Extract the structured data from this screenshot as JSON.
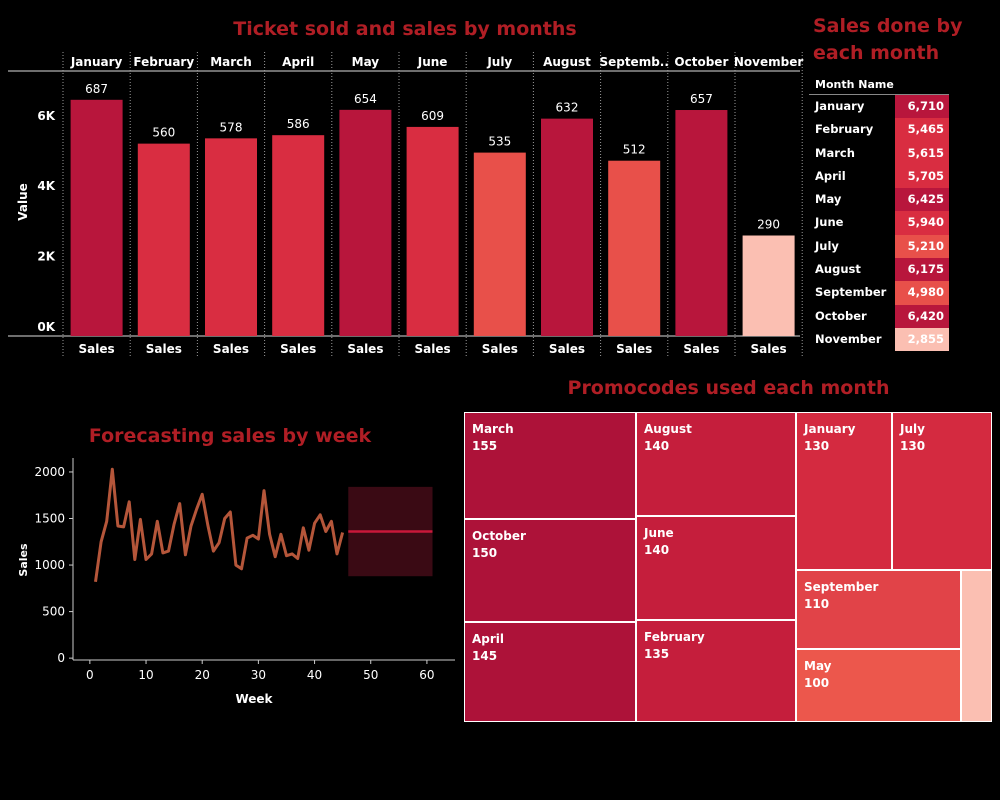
{
  "titles": {
    "bar": "Ticket sold and sales by months",
    "table": "Sales done by each month",
    "forecast": "Forecasting sales by week",
    "treemap": "Promocodes used each month"
  },
  "colors": {
    "background": "#000000",
    "title": "#b01e25",
    "dark": "#b8163c",
    "mid": "#d92d41",
    "light": "#e8504a",
    "pale": "#fbbfb2",
    "forecast_line": "#b5563a",
    "forecast_band": "#3a0a14",
    "forecast_mean": "#c8183a"
  },
  "chart_data": [
    {
      "type": "bar",
      "title": "Ticket sold and sales by months",
      "categories": [
        "January",
        "February",
        "March",
        "April",
        "May",
        "June",
        "July",
        "August",
        "Septemb..",
        "October",
        "November"
      ],
      "bottom_labels": [
        "Sales",
        "Sales",
        "Sales",
        "Sales",
        "Sales",
        "Sales",
        "Sales",
        "Sales",
        "Sales",
        "Sales",
        "Sales"
      ],
      "values": [
        6710,
        5465,
        5615,
        5705,
        6425,
        5940,
        5210,
        6175,
        4980,
        6420,
        2855
      ],
      "data_labels": [
        "687",
        "560",
        "578",
        "586",
        "654",
        "609",
        "535",
        "632",
        "512",
        "657",
        "290"
      ],
      "ylabel": "Value",
      "yticks": [
        "0K",
        "2K",
        "4K",
        "6K"
      ],
      "ytick_values": [
        0,
        2000,
        4000,
        6000
      ],
      "ylim": [
        0,
        7500
      ]
    },
    {
      "type": "table",
      "title": "Sales done by each month",
      "column_header": "Month Name",
      "rows": [
        {
          "month": "January",
          "value": "6,710"
        },
        {
          "month": "February",
          "value": "5,465"
        },
        {
          "month": "March",
          "value": "5,615"
        },
        {
          "month": "April",
          "value": "5,705"
        },
        {
          "month": "May",
          "value": "6,425"
        },
        {
          "month": "June",
          "value": "5,940"
        },
        {
          "month": "July",
          "value": "5,210"
        },
        {
          "month": "August",
          "value": "6,175"
        },
        {
          "month": "September",
          "value": "4,980"
        },
        {
          "month": "October",
          "value": "6,420"
        },
        {
          "month": "November",
          "value": "2,855"
        }
      ]
    },
    {
      "type": "line",
      "title": "Forecasting sales by week",
      "xlabel": "Week",
      "ylabel": "Sales",
      "xticks": [
        0,
        10,
        20,
        30,
        40,
        50,
        60
      ],
      "yticks": [
        0,
        500,
        1000,
        1500,
        2000
      ],
      "xlim": [
        -3,
        65
      ],
      "ylim": [
        -20,
        2150
      ],
      "x": [
        1,
        2,
        3,
        4,
        5,
        6,
        7,
        8,
        9,
        10,
        11,
        12,
        13,
        14,
        15,
        16,
        17,
        18,
        19,
        20,
        21,
        22,
        23,
        24,
        25,
        26,
        27,
        28,
        29,
        30,
        31,
        32,
        33,
        34,
        35,
        36,
        37,
        38,
        39,
        40,
        41,
        42,
        43,
        44,
        45
      ],
      "y": [
        820,
        1250,
        1470,
        2030,
        1420,
        1410,
        1680,
        1060,
        1490,
        1060,
        1120,
        1470,
        1130,
        1150,
        1440,
        1660,
        1110,
        1420,
        1600,
        1760,
        1430,
        1150,
        1240,
        1500,
        1570,
        1000,
        960,
        1290,
        1320,
        1280,
        1800,
        1330,
        1090,
        1330,
        1100,
        1120,
        1070,
        1400,
        1160,
        1450,
        1540,
        1360,
        1470,
        1120,
        1350
      ],
      "forecast": {
        "x_start": 46,
        "x_end": 61,
        "mean": 1360,
        "lower": 880,
        "upper": 1840
      }
    },
    {
      "type": "treemap",
      "title": "Promocodes used each month",
      "tiles": [
        {
          "label": "March",
          "value": "155"
        },
        {
          "label": "October",
          "value": "150"
        },
        {
          "label": "April",
          "value": "145"
        },
        {
          "label": "August",
          "value": "140"
        },
        {
          "label": "June",
          "value": "140"
        },
        {
          "label": "February",
          "value": "135"
        },
        {
          "label": "January",
          "value": "130"
        },
        {
          "label": "July",
          "value": "130"
        },
        {
          "label": "September",
          "value": "110"
        },
        {
          "label": "May",
          "value": "100"
        },
        {
          "label": "",
          "value": ""
        }
      ]
    }
  ]
}
